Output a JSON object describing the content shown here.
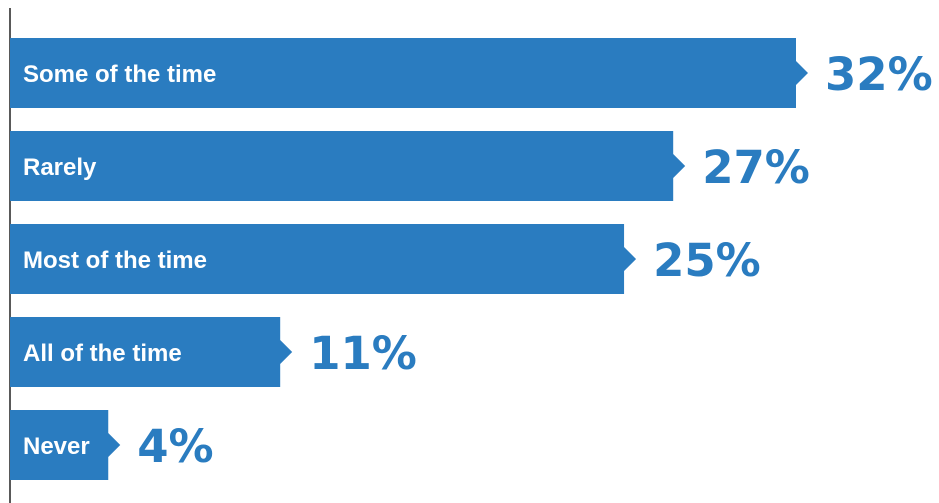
{
  "chart_data": {
    "type": "bar",
    "orientation": "horizontal",
    "categories": [
      "Some of the time",
      "Rarely",
      "Most of the time",
      "All of the time",
      "Never"
    ],
    "values": [
      32,
      27,
      25,
      11,
      4
    ],
    "value_labels": [
      "32%",
      "27%",
      "25%",
      "11%",
      "4%"
    ],
    "unit": "%",
    "title": "",
    "xlabel": "",
    "ylabel": "",
    "xlim": [
      0,
      32
    ],
    "grid": false,
    "legend": "none",
    "bar_color": "#2a7cc0",
    "value_label_color": "#2a7cc0",
    "category_label_color": "#ffffff",
    "axis_color": "#222222"
  }
}
